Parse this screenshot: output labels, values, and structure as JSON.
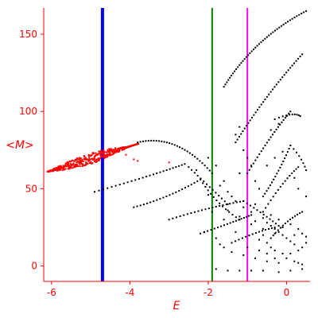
{
  "chart_data": {
    "type": "scatter",
    "title": "",
    "xlabel": "E",
    "ylabel": "<M>",
    "xlim": [
      -6.2,
      0.6
    ],
    "ylim": [
      -10,
      167
    ],
    "xticks": [
      -6,
      -4,
      -2,
      0
    ],
    "yticks": [
      0,
      50,
      100,
      150
    ],
    "grid": false,
    "colors": {
      "axis": "#ff0000",
      "red_series": "#ff0000",
      "black_series": "#000000",
      "line_blue": "#0000ff",
      "line_green": "#008000",
      "line_magenta": "#ff00ff"
    },
    "vertical_lines": [
      {
        "x": -4.7,
        "color": "#0000ff",
        "width": 4
      },
      {
        "x": -1.9,
        "color": "#008000",
        "width": 2
      },
      {
        "x": -1.0,
        "color": "#ff00ff",
        "width": 2
      }
    ],
    "red_band": {
      "x_start": -6.1,
      "x_end": -3.8,
      "y_start": 61,
      "y_end": 79,
      "thickness_max": 7
    },
    "red_outliers": [
      [
        -4.1,
        72
      ],
      [
        -3.9,
        69
      ],
      [
        -3.8,
        68
      ],
      [
        -3.0,
        67
      ]
    ],
    "black_curves": [
      {
        "from": [
          -3.8,
          80
        ],
        "ctrl": [
          -2.8,
          86
        ],
        "to": [
          -1.9,
          60
        ],
        "n": 30
      },
      {
        "from": [
          -4.9,
          48
        ],
        "ctrl": [
          -3.5,
          58
        ],
        "to": [
          -2.6,
          66
        ],
        "n": 26
      },
      {
        "from": [
          -2.5,
          64
        ],
        "ctrl": [
          -2.0,
          52
        ],
        "to": [
          -1.5,
          40
        ],
        "n": 14
      },
      {
        "from": [
          -3.9,
          38
        ],
        "ctrl": [
          -3.0,
          44
        ],
        "to": [
          -2.2,
          56
        ],
        "n": 22
      },
      {
        "from": [
          -2.2,
          56
        ],
        "ctrl": [
          -1.8,
          40
        ],
        "to": [
          -1.2,
          30
        ],
        "n": 14
      },
      {
        "from": [
          -3.0,
          30
        ],
        "ctrl": [
          -2.0,
          38
        ],
        "to": [
          -1.1,
          42
        ],
        "n": 22
      },
      {
        "from": [
          -1.1,
          42
        ],
        "ctrl": [
          -0.6,
          34
        ],
        "to": [
          -0.2,
          26
        ],
        "n": 12
      },
      {
        "from": [
          -2.2,
          21
        ],
        "ctrl": [
          -1.4,
          28
        ],
        "to": [
          -0.9,
          33
        ],
        "n": 18
      },
      {
        "from": [
          -1.4,
          15
        ],
        "ctrl": [
          -0.8,
          22
        ],
        "to": [
          -0.3,
          25
        ],
        "n": 14
      },
      {
        "from": [
          -1.6,
          116
        ],
        "ctrl": [
          -0.8,
          148
        ],
        "to": [
          0.5,
          165
        ],
        "n": 44
      },
      {
        "from": [
          -1.3,
          80
        ],
        "ctrl": [
          -0.5,
          112
        ],
        "to": [
          0.4,
          137
        ],
        "n": 36
      },
      {
        "from": [
          -1.0,
          60
        ],
        "ctrl": [
          -0.4,
          85
        ],
        "to": [
          0.1,
          100
        ],
        "n": 24
      },
      {
        "from": [
          -0.3,
          95
        ],
        "ctrl": [
          0.2,
          100
        ],
        "to": [
          0.35,
          97
        ],
        "n": 10
      },
      {
        "from": [
          -0.6,
          45
        ],
        "ctrl": [
          -0.2,
          60
        ],
        "to": [
          0.1,
          78
        ],
        "n": 18
      },
      {
        "from": [
          0.1,
          78
        ],
        "ctrl": [
          0.4,
          70
        ],
        "to": [
          0.5,
          62
        ],
        "n": 8
      },
      {
        "from": [
          -0.6,
          35
        ],
        "ctrl": [
          -0.1,
          55
        ],
        "to": [
          0.3,
          64
        ],
        "n": 16
      },
      {
        "from": [
          -0.4,
          18
        ],
        "ctrl": [
          0.0,
          30
        ],
        "to": [
          0.4,
          35
        ],
        "n": 14
      }
    ],
    "black_scatter": [
      [
        -1.2,
        90
      ],
      [
        -1.3,
        85
      ],
      [
        -1.1,
        75
      ],
      [
        -1.0,
        70
      ],
      [
        -0.9,
        65
      ],
      [
        -1.2,
        60
      ],
      [
        -0.8,
        55
      ],
      [
        -0.7,
        50
      ],
      [
        -1.5,
        48
      ],
      [
        -1.4,
        45
      ],
      [
        -1.3,
        42
      ],
      [
        -1.1,
        38
      ],
      [
        -0.9,
        35
      ],
      [
        -0.6,
        31
      ],
      [
        -0.5,
        28
      ],
      [
        -0.4,
        26
      ],
      [
        -0.3,
        24
      ],
      [
        -0.2,
        22
      ],
      [
        -0.1,
        20
      ],
      [
        0.0,
        18
      ],
      [
        0.1,
        16
      ],
      [
        0.2,
        14
      ],
      [
        -0.6,
        20
      ],
      [
        -0.7,
        17
      ],
      [
        -0.5,
        15
      ],
      [
        -0.4,
        12
      ],
      [
        -0.3,
        10
      ],
      [
        -0.1,
        8
      ],
      [
        0.0,
        5
      ],
      [
        0.2,
        3
      ],
      [
        0.3,
        2
      ],
      [
        0.4,
        1
      ],
      [
        -0.2,
        2
      ],
      [
        -0.5,
        3
      ],
      [
        -0.8,
        5
      ],
      [
        -1.1,
        7
      ],
      [
        -1.4,
        9
      ],
      [
        -1.6,
        12
      ],
      [
        -1.7,
        14
      ],
      [
        -0.9,
        27
      ],
      [
        -0.8,
        29
      ],
      [
        -0.4,
        33
      ],
      [
        -0.2,
        30
      ],
      [
        0.1,
        27
      ],
      [
        0.3,
        24
      ],
      [
        0.4,
        21
      ],
      [
        0.5,
        19
      ],
      [
        0.2,
        20
      ],
      [
        -0.1,
        25
      ],
      [
        -0.3,
        21
      ],
      [
        -0.6,
        24
      ],
      [
        0.3,
        10
      ],
      [
        0.4,
        12
      ],
      [
        0.5,
        15
      ],
      [
        0.1,
        8
      ],
      [
        -0.3,
        5
      ],
      [
        -0.6,
        -3
      ],
      [
        -0.9,
        -3
      ],
      [
        -1.2,
        -3
      ],
      [
        -1.5,
        -3
      ],
      [
        -0.2,
        -4
      ],
      [
        0.1,
        -3
      ],
      [
        0.4,
        -2
      ],
      [
        -1.8,
        -2
      ],
      [
        -1.9,
        35
      ],
      [
        -2.1,
        22
      ],
      [
        -1.8,
        18
      ],
      [
        -1.6,
        30
      ],
      [
        -1.5,
        36
      ],
      [
        -1.2,
        32
      ],
      [
        -1.7,
        52
      ],
      [
        -1.6,
        55
      ],
      [
        -2.0,
        46
      ],
      [
        -2.3,
        62
      ],
      [
        -2.0,
        70
      ],
      [
        -1.8,
        65
      ],
      [
        -0.4,
        88
      ],
      [
        -0.2,
        92
      ],
      [
        0.0,
        97
      ],
      [
        -0.5,
        65
      ],
      [
        -0.3,
        70
      ],
      [
        -0.1,
        74
      ],
      [
        0.2,
        57
      ],
      [
        0.3,
        50
      ],
      [
        0.5,
        45
      ],
      [
        -0.5,
        8
      ],
      [
        -0.7,
        10
      ],
      [
        -1.0,
        12
      ],
      [
        -1.3,
        22
      ],
      [
        -0.8,
        40
      ]
    ]
  }
}
